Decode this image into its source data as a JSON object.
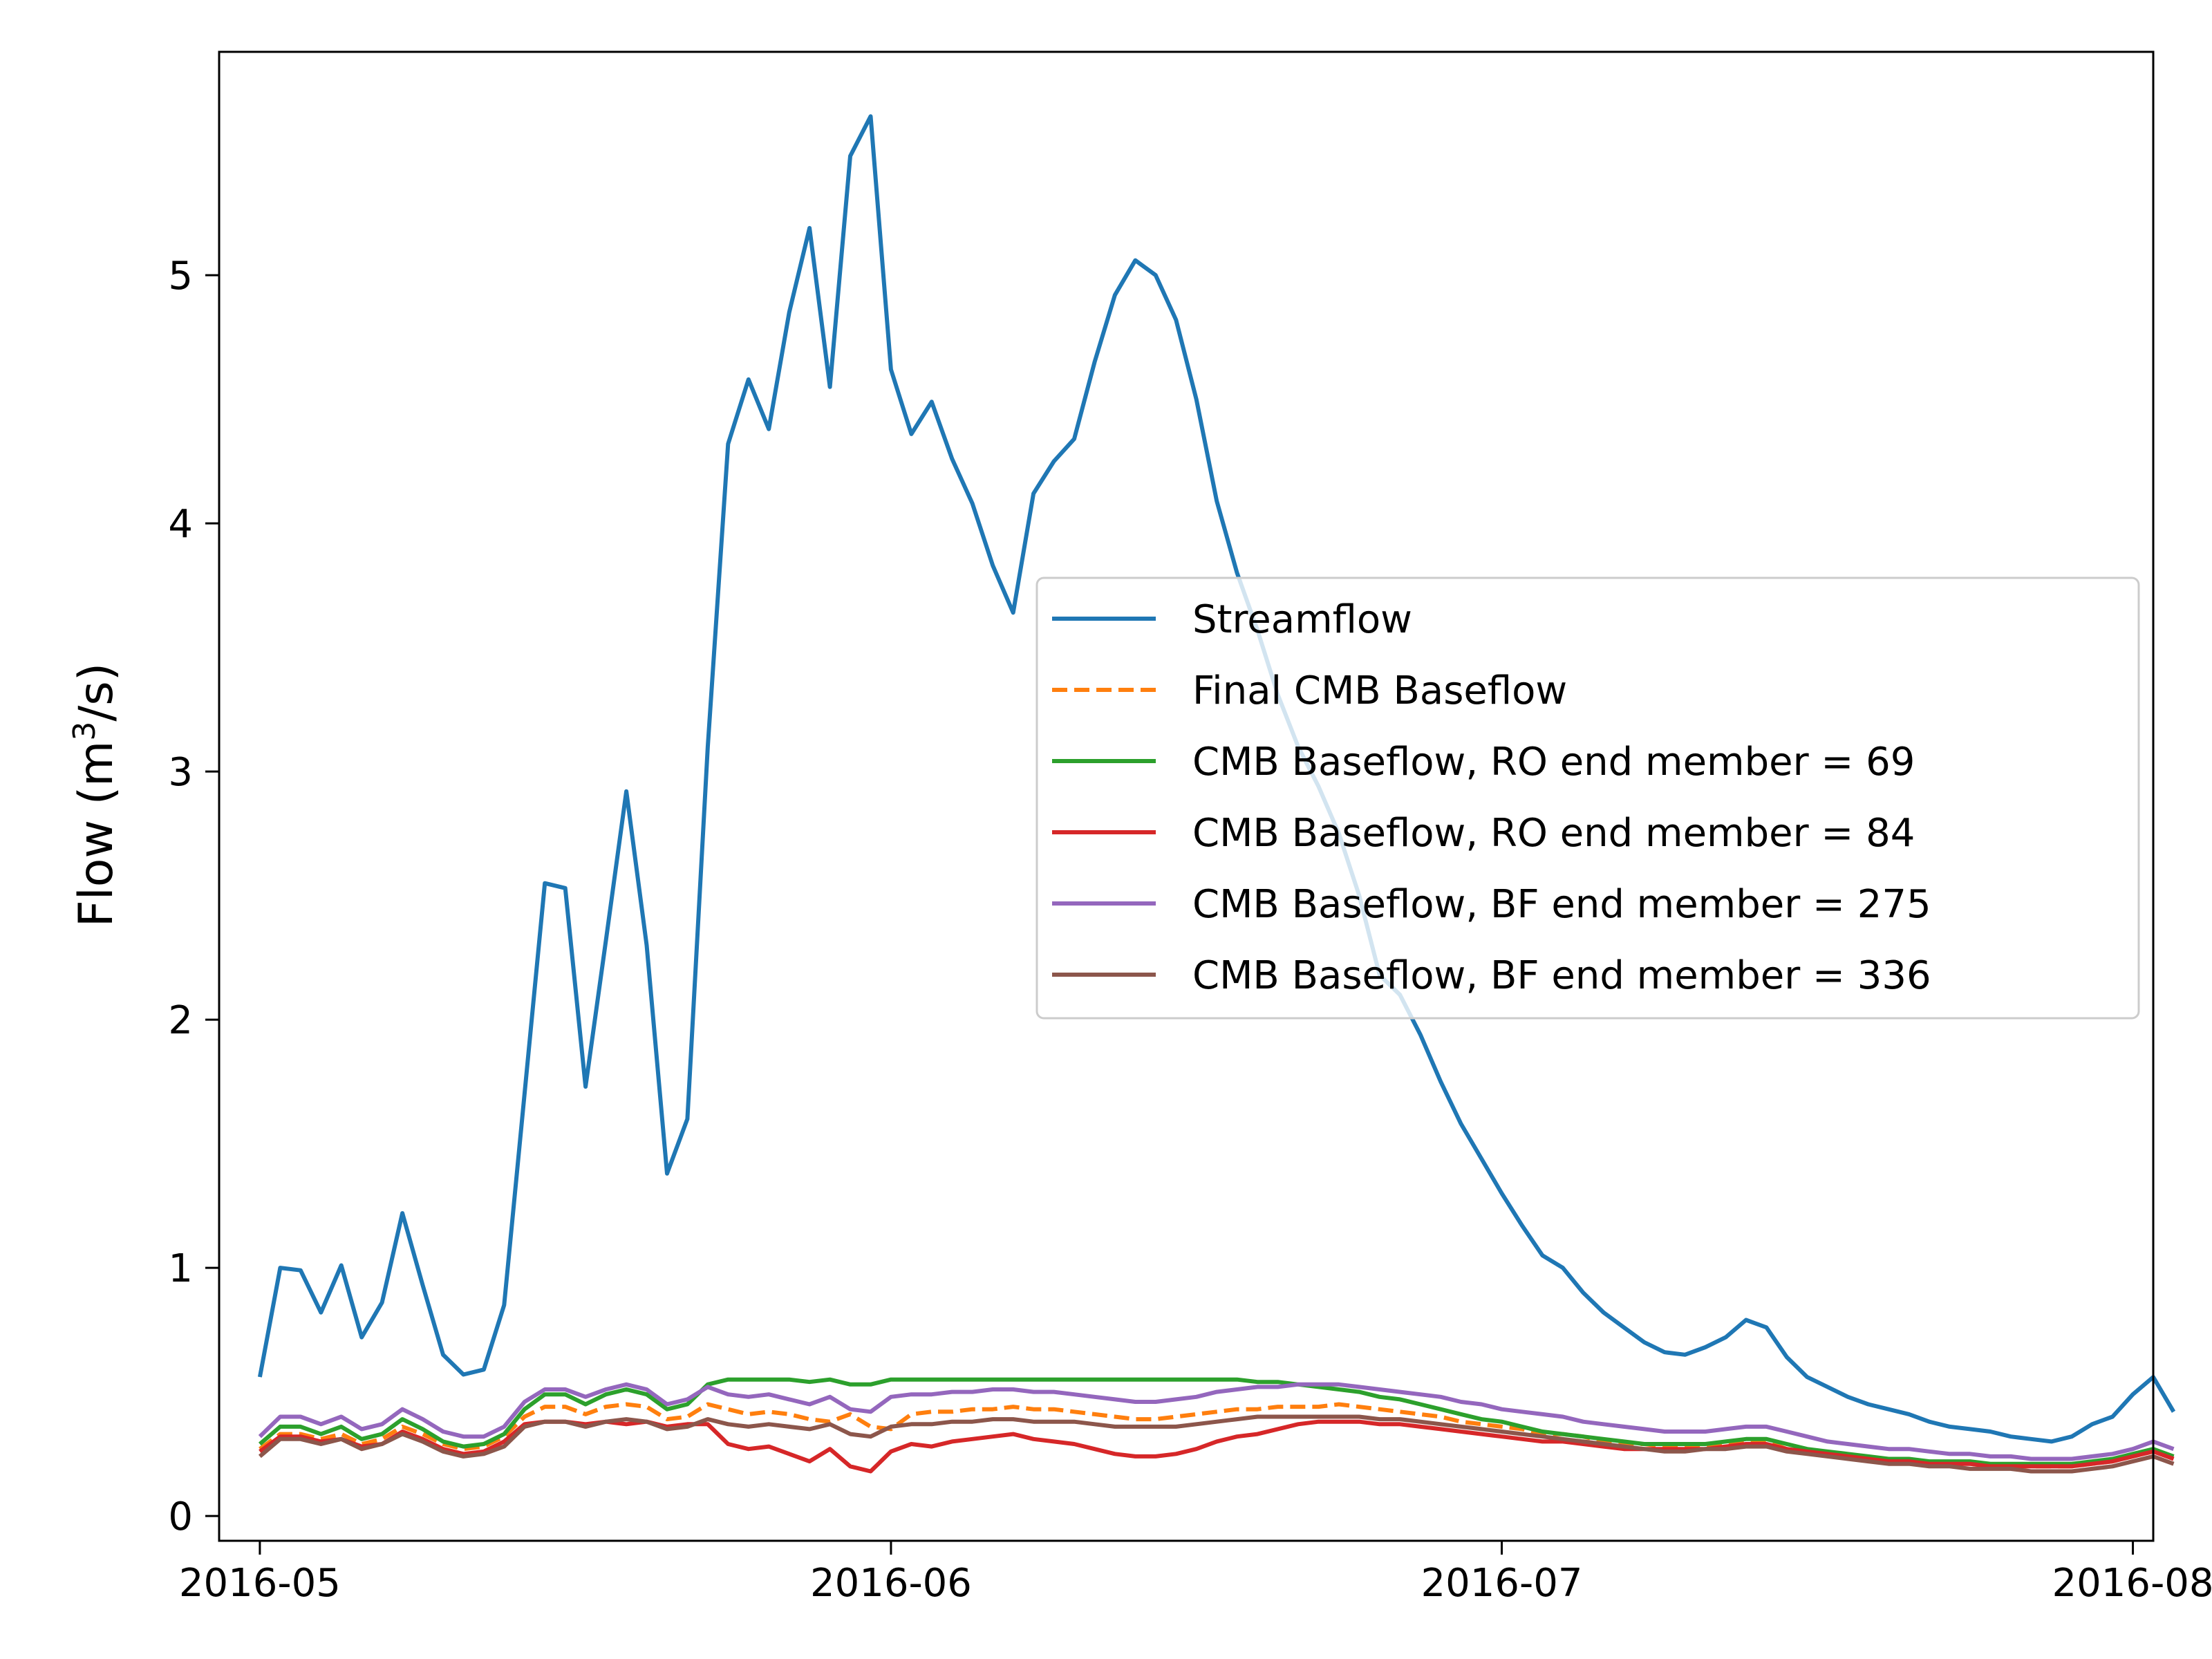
{
  "chart_data": {
    "type": "line",
    "title": "",
    "xlabel": "",
    "ylabel": "Flow (m³/s)",
    "ylabel_parts": {
      "pre": "Flow (m",
      "sup": "3",
      "post": "/s)"
    },
    "x_start": "2016-05-01",
    "x_range": [
      "2016-04-29",
      "2016-08-02"
    ],
    "ylim": [
      -0.1,
      5.9
    ],
    "grid": false,
    "legend_position": "center-right",
    "x_ticks": [
      {
        "date": "2016-05-01",
        "label": "2016-05"
      },
      {
        "date": "2016-06-01",
        "label": "2016-06"
      },
      {
        "date": "2016-07-01",
        "label": "2016-07"
      },
      {
        "date": "2016-08-01",
        "label": "2016-08"
      }
    ],
    "y_ticks": [
      {
        "value": 0,
        "label": "0"
      },
      {
        "value": 1,
        "label": "1"
      },
      {
        "value": 2,
        "label": "2"
      },
      {
        "value": 3,
        "label": "3"
      },
      {
        "value": 4,
        "label": "4"
      },
      {
        "value": 5,
        "label": "5"
      }
    ],
    "series": [
      {
        "name": "Streamflow",
        "color": "#1f77b4",
        "dash": "solid",
        "values": [
          0.56,
          1.0,
          0.99,
          0.82,
          1.01,
          0.72,
          0.86,
          1.22,
          0.93,
          0.65,
          0.57,
          0.59,
          0.85,
          1.7,
          2.55,
          2.53,
          1.73,
          2.32,
          2.92,
          2.3,
          1.38,
          1.6,
          3.1,
          4.32,
          4.58,
          4.38,
          4.85,
          5.19,
          4.55,
          5.48,
          5.64,
          4.62,
          4.36,
          4.49,
          4.26,
          4.08,
          3.83,
          3.64,
          4.12,
          4.25,
          4.34,
          4.65,
          4.92,
          5.06,
          5.0,
          4.82,
          4.5,
          4.09,
          3.8,
          3.57,
          3.31,
          3.1,
          2.94,
          2.75,
          2.5,
          2.18,
          2.1,
          1.94,
          1.75,
          1.58,
          1.44,
          1.3,
          1.17,
          1.05,
          1.0,
          0.9,
          0.82,
          0.76,
          0.7,
          0.66,
          0.65,
          0.68,
          0.72,
          0.79,
          0.76,
          0.64,
          0.56,
          0.52,
          0.48,
          0.45,
          0.43,
          0.41,
          0.38,
          0.36,
          0.35,
          0.34,
          0.32,
          0.31,
          0.3,
          0.32,
          0.37,
          0.4,
          0.49,
          0.56,
          0.42
        ]
      },
      {
        "name": "Final CMB Baseflow",
        "color": "#ff7f0e",
        "dash": "dashed",
        "values": [
          0.27,
          0.33,
          0.33,
          0.31,
          0.33,
          0.29,
          0.31,
          0.36,
          0.33,
          0.29,
          0.27,
          0.28,
          0.32,
          0.4,
          0.44,
          0.44,
          0.41,
          0.44,
          0.45,
          0.44,
          0.39,
          0.4,
          0.45,
          0.43,
          0.41,
          0.42,
          0.41,
          0.39,
          0.38,
          0.41,
          0.36,
          0.35,
          0.41,
          0.42,
          0.42,
          0.43,
          0.43,
          0.44,
          0.43,
          0.43,
          0.42,
          0.41,
          0.4,
          0.39,
          0.39,
          0.4,
          0.41,
          0.42,
          0.43,
          0.43,
          0.44,
          0.44,
          0.44,
          0.45,
          0.44,
          0.43,
          0.42,
          0.41,
          0.4,
          0.38,
          0.37,
          0.36,
          0.35,
          0.33,
          0.33,
          0.32,
          0.3,
          0.29,
          0.29,
          0.28,
          0.28,
          0.28,
          0.29,
          0.3,
          0.3,
          0.27,
          0.26,
          0.25,
          0.24,
          0.23,
          0.23,
          0.22,
          0.21,
          0.21,
          0.21,
          0.2,
          0.2,
          0.2,
          0.2,
          0.2,
          0.21,
          0.22,
          0.24,
          0.26,
          0.24
        ]
      },
      {
        "name": "CMB Baseflow, RO end member = 69",
        "color": "#2ca02c",
        "dash": "solid",
        "values": [
          0.29,
          0.36,
          0.36,
          0.33,
          0.36,
          0.31,
          0.33,
          0.39,
          0.35,
          0.3,
          0.28,
          0.29,
          0.33,
          0.43,
          0.49,
          0.49,
          0.45,
          0.49,
          0.51,
          0.49,
          0.43,
          0.45,
          0.53,
          0.55,
          0.55,
          0.55,
          0.55,
          0.54,
          0.55,
          0.53,
          0.53,
          0.55,
          0.55,
          0.55,
          0.55,
          0.55,
          0.55,
          0.55,
          0.55,
          0.55,
          0.55,
          0.55,
          0.55,
          0.55,
          0.55,
          0.55,
          0.55,
          0.55,
          0.55,
          0.54,
          0.54,
          0.53,
          0.52,
          0.51,
          0.5,
          0.48,
          0.47,
          0.45,
          0.43,
          0.41,
          0.39,
          0.38,
          0.36,
          0.34,
          0.33,
          0.32,
          0.31,
          0.3,
          0.29,
          0.29,
          0.29,
          0.29,
          0.3,
          0.31,
          0.31,
          0.29,
          0.27,
          0.26,
          0.25,
          0.24,
          0.23,
          0.23,
          0.22,
          0.22,
          0.22,
          0.21,
          0.21,
          0.21,
          0.21,
          0.21,
          0.22,
          0.23,
          0.25,
          0.27,
          0.24
        ]
      },
      {
        "name": "CMB Baseflow, RO end member = 84",
        "color": "#d62728",
        "dash": "solid",
        "values": [
          0.26,
          0.32,
          0.32,
          0.3,
          0.31,
          0.28,
          0.29,
          0.34,
          0.31,
          0.27,
          0.25,
          0.26,
          0.3,
          0.37,
          0.38,
          0.38,
          0.37,
          0.38,
          0.37,
          0.38,
          0.36,
          0.37,
          0.37,
          0.29,
          0.27,
          0.28,
          0.25,
          0.22,
          0.27,
          0.2,
          0.18,
          0.26,
          0.29,
          0.28,
          0.3,
          0.31,
          0.32,
          0.33,
          0.31,
          0.3,
          0.29,
          0.27,
          0.25,
          0.24,
          0.24,
          0.25,
          0.27,
          0.3,
          0.32,
          0.33,
          0.35,
          0.37,
          0.38,
          0.38,
          0.38,
          0.37,
          0.37,
          0.36,
          0.35,
          0.34,
          0.33,
          0.32,
          0.31,
          0.3,
          0.3,
          0.29,
          0.28,
          0.27,
          0.27,
          0.27,
          0.27,
          0.27,
          0.28,
          0.29,
          0.29,
          0.27,
          0.26,
          0.25,
          0.24,
          0.23,
          0.22,
          0.22,
          0.21,
          0.21,
          0.21,
          0.2,
          0.2,
          0.2,
          0.2,
          0.2,
          0.21,
          0.22,
          0.24,
          0.26,
          0.23
        ]
      },
      {
        "name": "CMB Baseflow, BF end member = 275",
        "color": "#9467bd",
        "dash": "solid",
        "values": [
          0.32,
          0.4,
          0.4,
          0.37,
          0.4,
          0.35,
          0.37,
          0.43,
          0.39,
          0.34,
          0.32,
          0.32,
          0.36,
          0.46,
          0.51,
          0.51,
          0.48,
          0.51,
          0.53,
          0.51,
          0.45,
          0.47,
          0.52,
          0.49,
          0.48,
          0.49,
          0.47,
          0.45,
          0.48,
          0.43,
          0.42,
          0.48,
          0.49,
          0.49,
          0.5,
          0.5,
          0.51,
          0.51,
          0.5,
          0.5,
          0.49,
          0.48,
          0.47,
          0.46,
          0.46,
          0.47,
          0.48,
          0.5,
          0.51,
          0.52,
          0.52,
          0.53,
          0.53,
          0.53,
          0.52,
          0.51,
          0.5,
          0.49,
          0.48,
          0.46,
          0.45,
          0.43,
          0.42,
          0.41,
          0.4,
          0.38,
          0.37,
          0.36,
          0.35,
          0.34,
          0.34,
          0.34,
          0.35,
          0.36,
          0.36,
          0.34,
          0.32,
          0.3,
          0.29,
          0.28,
          0.27,
          0.27,
          0.26,
          0.25,
          0.25,
          0.24,
          0.24,
          0.23,
          0.23,
          0.23,
          0.24,
          0.25,
          0.27,
          0.3,
          0.27
        ]
      },
      {
        "name": "CMB Baseflow, BF end member = 336",
        "color": "#8c564b",
        "dash": "solid",
        "values": [
          0.24,
          0.31,
          0.31,
          0.29,
          0.31,
          0.27,
          0.29,
          0.33,
          0.3,
          0.26,
          0.24,
          0.25,
          0.28,
          0.36,
          0.38,
          0.38,
          0.36,
          0.38,
          0.39,
          0.38,
          0.35,
          0.36,
          0.39,
          0.37,
          0.36,
          0.37,
          0.36,
          0.35,
          0.37,
          0.33,
          0.32,
          0.36,
          0.37,
          0.37,
          0.38,
          0.38,
          0.39,
          0.39,
          0.38,
          0.38,
          0.38,
          0.37,
          0.36,
          0.36,
          0.36,
          0.36,
          0.37,
          0.38,
          0.39,
          0.4,
          0.4,
          0.4,
          0.4,
          0.4,
          0.4,
          0.39,
          0.39,
          0.38,
          0.37,
          0.36,
          0.35,
          0.34,
          0.33,
          0.32,
          0.31,
          0.3,
          0.29,
          0.28,
          0.27,
          0.26,
          0.26,
          0.27,
          0.27,
          0.28,
          0.28,
          0.26,
          0.25,
          0.24,
          0.23,
          0.22,
          0.21,
          0.21,
          0.2,
          0.2,
          0.19,
          0.19,
          0.19,
          0.18,
          0.18,
          0.18,
          0.19,
          0.2,
          0.22,
          0.24,
          0.21
        ]
      }
    ]
  }
}
